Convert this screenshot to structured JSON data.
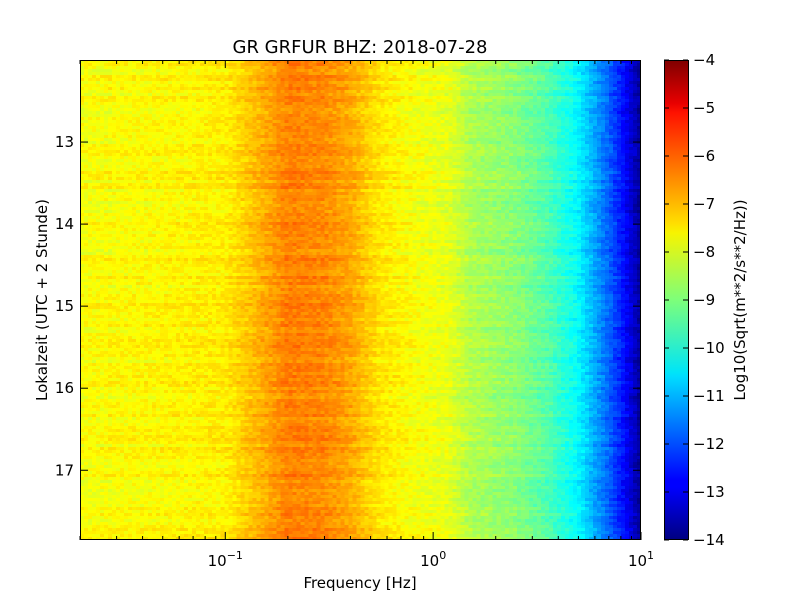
{
  "chart_data": {
    "type": "heatmap",
    "title": "GR GRFUR BHZ: 2018-07-28",
    "xlabel": "Frequency [Hz]",
    "ylabel": "Lokalzeit (UTC + 2 Stunde)",
    "colorbar_label": "Log10(Sqrt(m**2/s**2/Hz))",
    "x_scale": "log",
    "x_range": [
      0.02,
      10
    ],
    "x_ticks": [
      {
        "value": 0.1,
        "base": "10",
        "exp": "−1"
      },
      {
        "value": 1,
        "base": "10",
        "exp": "0"
      },
      {
        "value": 10,
        "base": "10",
        "exp": "1"
      }
    ],
    "y_range": [
      12.0,
      17.85
    ],
    "y_inverted": true,
    "y_ticks": [
      "13",
      "14",
      "15",
      "16",
      "17"
    ],
    "colorbar_range": [
      -14,
      -4
    ],
    "colorbar_ticks": [
      "−4",
      "−5",
      "−6",
      "−7",
      "−8",
      "−9",
      "−10",
      "−11",
      "−12",
      "−13",
      "−14"
    ],
    "colormap": "jet",
    "spectrum_profile": {
      "frequency_hz": [
        0.02,
        0.05,
        0.1,
        0.13,
        0.2,
        0.3,
        0.4,
        0.55,
        0.8,
        1.2,
        1.5,
        2.5,
        3.5,
        5,
        7,
        8.5,
        10
      ],
      "log10_amplitude": [
        -7.8,
        -7.7,
        -7.6,
        -7.2,
        -6.5,
        -6.6,
        -6.9,
        -7.5,
        -7.8,
        -8.0,
        -8.5,
        -8.9,
        -9.4,
        -10.3,
        -11.8,
        -12.8,
        -13.8
      ]
    },
    "grid": false
  }
}
